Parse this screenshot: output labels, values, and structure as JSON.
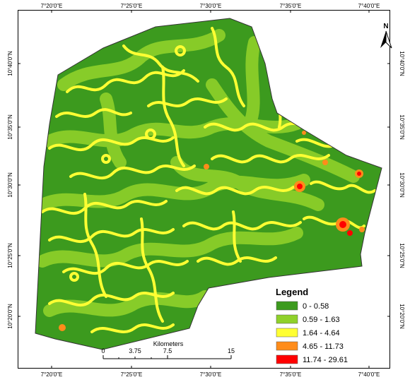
{
  "top_ticks": [
    "7°20'0\"E",
    "7°25'0\"E",
    "7°30'0\"E",
    "7°35'0\"E",
    "7°40'0\"E"
  ],
  "bottom_ticks": [
    "7°20'0\"E",
    "7°25'0\"E",
    "7°30'0\"E",
    "7°35'0\"E",
    "7°40'0\"E"
  ],
  "left_ticks": [
    "10°40'0\"N",
    "10°35'0\"N",
    "10°30'0\"N",
    "10°25'0\"N",
    "10°20'0\"N"
  ],
  "right_ticks": [
    "10°40'0\"N",
    "10°35'0\"N",
    "10°30'0\"N",
    "10°25'0\"N",
    "10°20'0\"N"
  ],
  "north_label": "N",
  "legend": {
    "title": "Legend",
    "items": [
      {
        "label": "0 - 0.58",
        "color": "#3c9a1e"
      },
      {
        "label": "0.59 - 1.63",
        "color": "#8fd12a"
      },
      {
        "label": "1.64 - 4.64",
        "color": "#ffff33"
      },
      {
        "label": "4.65 - 11.73",
        "color": "#ff8c1a"
      },
      {
        "label": "11.74 - 29.61",
        "color": "#ff0000"
      }
    ]
  },
  "scale_bar": {
    "units": "Kilometers",
    "labels": [
      "0",
      "3.75",
      "7.5",
      "15"
    ]
  }
}
